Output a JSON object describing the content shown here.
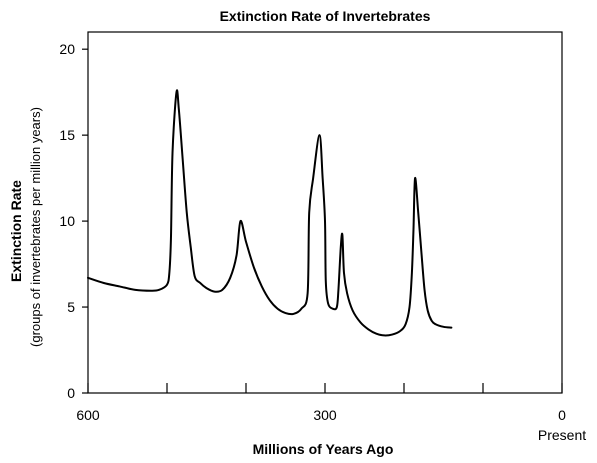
{
  "chart_data": {
    "type": "line",
    "title": "Extinction Rate of Invertebrates",
    "ylabel": "Extinction Rate",
    "ylabel_sub": "(groups of invertebrates per million years)",
    "xlabel": "Millions of Years Ago",
    "xlim": [
      600,
      0
    ],
    "ylim": [
      0,
      21
    ],
    "x_ticks": [
      600,
      500,
      400,
      300,
      200,
      100,
      0
    ],
    "x_tick_labels": [
      {
        "x": 600,
        "label": "600"
      },
      {
        "x": 300,
        "label": "300"
      },
      {
        "x": 0,
        "label": "0"
      }
    ],
    "x_end_note": "Present",
    "y_ticks": [
      0,
      5,
      10,
      15,
      20
    ],
    "y_tick_labels": [
      "0",
      "5",
      "10",
      "15",
      "20"
    ],
    "grid": false,
    "series": [
      {
        "points": [
          [
            600,
            6.7
          ],
          [
            580,
            6.4
          ],
          [
            560,
            6.2
          ],
          [
            540,
            6.0
          ],
          [
            520,
            5.95
          ],
          [
            510,
            6.0
          ],
          [
            500,
            6.3
          ],
          [
            497,
            7.0
          ],
          [
            495,
            9.0
          ],
          [
            493,
            14.0
          ],
          [
            488,
            17.5
          ],
          [
            485,
            16.5
          ],
          [
            480,
            13.5
          ],
          [
            475,
            10.5
          ],
          [
            470,
            8.5
          ],
          [
            465,
            6.8
          ],
          [
            458,
            6.4
          ],
          [
            450,
            6.1
          ],
          [
            440,
            5.9
          ],
          [
            430,
            6.0
          ],
          [
            420,
            6.7
          ],
          [
            412,
            8.0
          ],
          [
            407,
            10.0
          ],
          [
            400,
            8.8
          ],
          [
            390,
            7.3
          ],
          [
            380,
            6.2
          ],
          [
            370,
            5.4
          ],
          [
            360,
            4.9
          ],
          [
            350,
            4.65
          ],
          [
            340,
            4.6
          ],
          [
            330,
            4.9
          ],
          [
            322,
            5.8
          ],
          [
            320,
            10.5
          ],
          [
            315,
            12.5
          ],
          [
            307,
            15.0
          ],
          [
            303,
            12.5
          ],
          [
            300,
            10.0
          ],
          [
            299,
            6.5
          ],
          [
            296,
            5.2
          ],
          [
            290,
            4.9
          ],
          [
            285,
            5.0
          ],
          [
            283,
            6.0
          ],
          [
            280,
            8.5
          ],
          [
            278,
            9.2
          ],
          [
            276,
            7.0
          ],
          [
            272,
            5.8
          ],
          [
            265,
            4.8
          ],
          [
            255,
            4.1
          ],
          [
            245,
            3.7
          ],
          [
            235,
            3.45
          ],
          [
            225,
            3.35
          ],
          [
            215,
            3.4
          ],
          [
            205,
            3.6
          ],
          [
            198,
            4.0
          ],
          [
            193,
            5.0
          ],
          [
            190,
            7.0
          ],
          [
            188,
            9.5
          ],
          [
            186,
            12.5
          ],
          [
            182,
            10.5
          ],
          [
            178,
            8.2
          ],
          [
            174,
            6.0
          ],
          [
            170,
            4.8
          ],
          [
            165,
            4.2
          ],
          [
            160,
            4.0
          ],
          [
            150,
            3.85
          ],
          [
            140,
            3.8
          ]
        ]
      }
    ]
  }
}
